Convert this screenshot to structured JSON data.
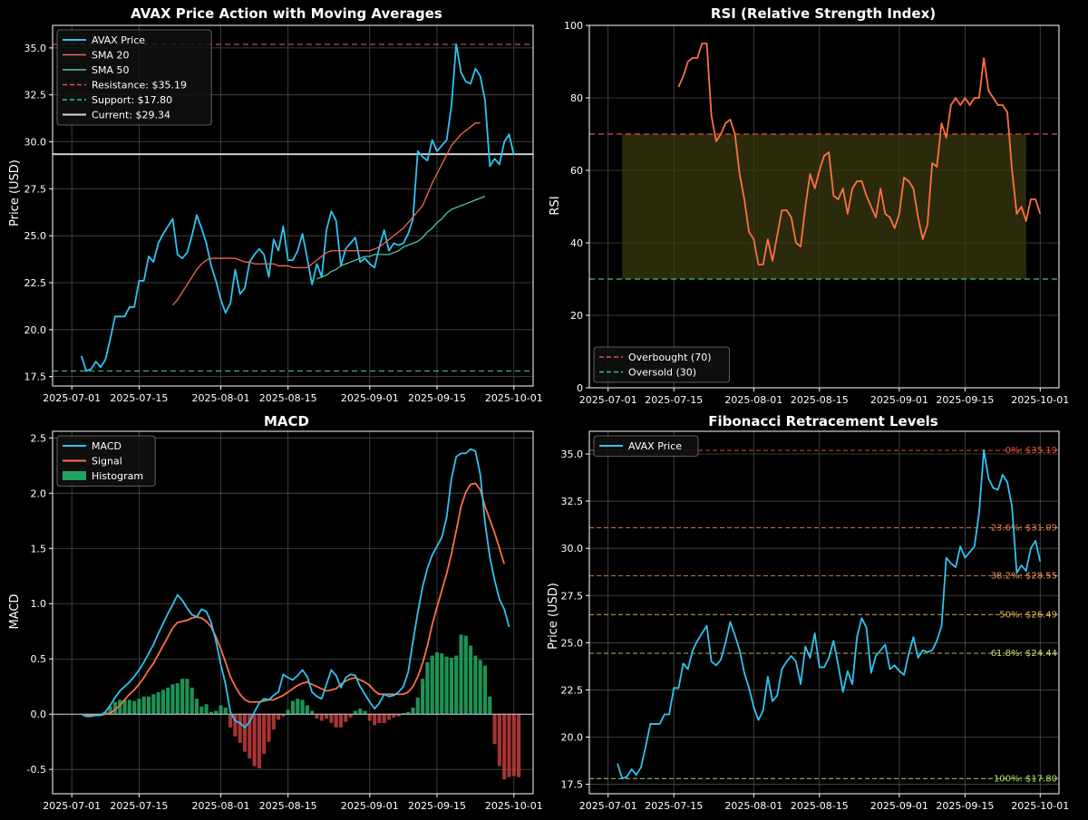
{
  "dates": {
    "start": "2025-07-03",
    "end": "2025-09-29"
  },
  "xticks": [
    "2025-07-01",
    "2025-07-15",
    "2025-08-01",
    "2025-08-15",
    "2025-09-01",
    "2025-09-15",
    "2025-10-01"
  ],
  "colors": {
    "background": "#000000",
    "axes_edge": "#ffffff",
    "grid": "#4d4d4d",
    "price": "#2ec4f1",
    "sma20": "#f06a4a",
    "sma50": "#4fc7a6",
    "resistance": "#d9534f",
    "support": "#2ecc71",
    "current": "#d9d9d9",
    "rsi": "#ff7043",
    "overbought": "#d9534f",
    "oversold": "#2ecc71",
    "rsi_band": "#3a3a10",
    "macd": "#2ec4f1",
    "signal": "#ff7043",
    "hist_pos": "#1fa45e",
    "hist_neg": "#b93a3a",
    "fib0": "#e74c3c",
    "fib236": "#e67e53",
    "fib382": "#f0975a",
    "fib50": "#e6b450",
    "fib618": "#d4d86a",
    "fib100": "#a8e06a"
  },
  "chart_data": [
    {
      "id": "price",
      "type": "line",
      "title": "AVAX Price Action with Moving Averages",
      "xlabel": "",
      "ylabel": "Price (USD)",
      "ylim": [
        17.0,
        36.2
      ],
      "yticks": [
        "17.5",
        "20.0",
        "22.5",
        "25.0",
        "27.5",
        "30.0",
        "32.5",
        "35.0"
      ],
      "series": [
        {
          "name": "AVAX Price",
          "start": "2025-07-03",
          "values": [
            18.6,
            17.8,
            17.9,
            18.3,
            18.0,
            18.4,
            19.5,
            20.7,
            20.7,
            20.7,
            21.2,
            21.2,
            22.6,
            22.6,
            23.9,
            23.6,
            24.6,
            25.1,
            25.5,
            25.9,
            24.0,
            23.8,
            24.1,
            25.0,
            26.1,
            25.4,
            24.6,
            23.4,
            22.6,
            21.6,
            20.9,
            21.4,
            23.2,
            21.9,
            22.2,
            23.6,
            24.0,
            24.3,
            24.0,
            22.8,
            24.8,
            24.2,
            25.5,
            23.7,
            23.7,
            24.2,
            25.1,
            23.8,
            22.4,
            23.5,
            22.8,
            25.3,
            26.3,
            25.8,
            23.4,
            24.3,
            24.6,
            24.9,
            23.6,
            23.8,
            23.5,
            23.3,
            24.4,
            25.3,
            24.2,
            24.6,
            24.5,
            24.6,
            25.1,
            25.9,
            29.5,
            29.2,
            29.0,
            30.1,
            29.5,
            29.8,
            30.1,
            31.9,
            35.2,
            33.7,
            33.2,
            33.1,
            33.9,
            33.5,
            32.2,
            28.7,
            29.1,
            28.8,
            30.0,
            30.4,
            29.3
          ]
        },
        {
          "name": "SMA 20",
          "start": "2025-07-22",
          "values": [
            21.3,
            21.6,
            22.0,
            22.4,
            22.8,
            23.2,
            23.5,
            23.7,
            23.8,
            23.8,
            23.8,
            23.8,
            23.8,
            23.8,
            23.7,
            23.6,
            23.6,
            23.5,
            23.5,
            23.5,
            23.5,
            23.5,
            23.4,
            23.4,
            23.4,
            23.3,
            23.3,
            23.3,
            23.3,
            23.5,
            23.7,
            23.9,
            24.1,
            24.2,
            24.2,
            24.2,
            24.2,
            24.2,
            24.2,
            24.2,
            24.2,
            24.2,
            24.3,
            24.4,
            24.6,
            24.8,
            25.0,
            25.2,
            25.4,
            25.7,
            26.0,
            26.3,
            26.6,
            27.2,
            27.8,
            28.3,
            28.8,
            29.3,
            29.8,
            30.1,
            30.4,
            30.6,
            30.8,
            31.0,
            31.0
          ]
        },
        {
          "name": "SMA 50",
          "start": "2025-08-21",
          "values": [
            22.7,
            22.8,
            22.9,
            23.1,
            23.2,
            23.4,
            23.5,
            23.6,
            23.7,
            23.8,
            23.9,
            23.9,
            24.0,
            24.0,
            24.0,
            24.0,
            24.1,
            24.2,
            24.4,
            24.5,
            24.6,
            24.7,
            24.9,
            25.2,
            25.4,
            25.7,
            25.9,
            26.2,
            26.4,
            26.5,
            26.6,
            26.7,
            26.8,
            26.9,
            27.0,
            27.1
          ]
        }
      ],
      "hlines": [
        {
          "name": "Resistance: $35.19",
          "value": 35.19,
          "style": "dashed",
          "color_key": "resistance"
        },
        {
          "name": "Support: $17.80",
          "value": 17.8,
          "style": "dashed",
          "color_key": "support"
        },
        {
          "name": "Current: $29.34",
          "value": 29.34,
          "style": "solid",
          "color_key": "current"
        }
      ],
      "legend": "top-left"
    },
    {
      "id": "rsi",
      "type": "line",
      "title": "RSI (Relative Strength Index)",
      "xlabel": "",
      "ylabel": "RSI",
      "ylim": [
        0,
        100
      ],
      "yticks": [
        "0",
        "20",
        "40",
        "60",
        "80",
        "100"
      ],
      "series": [
        {
          "name": "RSI",
          "start": "2025-07-16",
          "values": [
            83,
            86,
            90,
            91,
            91,
            95,
            95,
            75,
            68,
            70,
            73,
            74,
            70,
            59,
            52,
            43,
            41,
            34,
            34,
            41,
            35,
            42,
            49,
            49,
            47,
            40,
            39,
            50,
            59,
            55,
            60,
            64,
            65,
            53,
            52,
            55,
            48,
            55,
            57,
            57,
            53,
            50,
            47,
            55,
            48,
            47,
            44,
            48,
            58,
            57,
            55,
            47,
            41,
            45,
            62,
            61,
            73,
            69,
            78,
            80,
            78,
            80,
            78,
            80,
            80,
            91,
            82,
            80,
            78,
            78,
            76,
            60,
            48,
            50,
            46,
            52,
            52,
            48
          ]
        }
      ],
      "hlines": [
        {
          "name": "Overbought (70)",
          "value": 70,
          "style": "dashed",
          "color_key": "overbought"
        },
        {
          "name": "Oversold (30)",
          "value": 30,
          "style": "dashed",
          "color_key": "oversold"
        }
      ],
      "band": {
        "from_date": "2025-07-04",
        "to_date": "2025-09-28",
        "ymin": 30,
        "ymax": 70
      },
      "legend": "bottom-left"
    },
    {
      "id": "macd",
      "type": "line",
      "title": "MACD",
      "xlabel": "",
      "ylabel": "MACD",
      "ylim": [
        -0.72,
        2.56
      ],
      "yticks": [
        "-0.5",
        "0.0",
        "0.5",
        "1.0",
        "1.5",
        "2.0",
        "2.5"
      ],
      "series": [
        {
          "name": "MACD",
          "start": "2025-07-03",
          "values": [
            0,
            -0.02,
            -0.02,
            -0.01,
            -0.01,
            0.02,
            0.08,
            0.15,
            0.21,
            0.25,
            0.29,
            0.34,
            0.4,
            0.47,
            0.55,
            0.63,
            0.73,
            0.82,
            0.91,
            0.99,
            1.08,
            1.03,
            0.96,
            0.9,
            0.88,
            0.95,
            0.93,
            0.83,
            0.66,
            0.45,
            0.27,
            0.02,
            -0.06,
            -0.08,
            -0.12,
            -0.07,
            0.02,
            0.1,
            0.14,
            0.13,
            0.17,
            0.2,
            0.36,
            0.33,
            0.31,
            0.35,
            0.4,
            0.34,
            0.2,
            0.16,
            0.14,
            0.27,
            0.4,
            0.35,
            0.24,
            0.33,
            0.36,
            0.35,
            0.25,
            0.18,
            0.11,
            0.05,
            0.1,
            0.18,
            0.16,
            0.17,
            0.2,
            0.25,
            0.38,
            0.66,
            0.92,
            1.15,
            1.32,
            1.44,
            1.52,
            1.6,
            1.78,
            2.13,
            2.33,
            2.36,
            2.36,
            2.4,
            2.38,
            2.17,
            1.73,
            1.42,
            1.21,
            1.04,
            0.95,
            0.79
          ]
        },
        {
          "name": "Signal",
          "start": "2025-07-03",
          "values": [
            0,
            -0.01,
            -0.01,
            -0.01,
            -0.01,
            0,
            0.01,
            0.04,
            0.08,
            0.13,
            0.18,
            0.22,
            0.27,
            0.33,
            0.4,
            0.46,
            0.54,
            0.62,
            0.7,
            0.78,
            0.83,
            0.84,
            0.85,
            0.87,
            0.88,
            0.87,
            0.84,
            0.79,
            0.7,
            0.59,
            0.47,
            0.34,
            0.25,
            0.18,
            0.13,
            0.11,
            0.11,
            0.11,
            0.12,
            0.13,
            0.13,
            0.15,
            0.17,
            0.2,
            0.23,
            0.26,
            0.28,
            0.29,
            0.27,
            0.25,
            0.23,
            0.21,
            0.22,
            0.23,
            0.27,
            0.3,
            0.32,
            0.33,
            0.31,
            0.29,
            0.26,
            0.21,
            0.18,
            0.18,
            0.18,
            0.18,
            0.18,
            0.18,
            0.2,
            0.25,
            0.34,
            0.46,
            0.62,
            0.81,
            0.97,
            1.12,
            1.27,
            1.45,
            1.66,
            1.88,
            2.01,
            2.08,
            2.09,
            2.03,
            1.88,
            1.76,
            1.64,
            1.5,
            1.36
          ]
        },
        {
          "name": "Histogram",
          "start": "2025-07-03",
          "values": [
            0,
            -0.01,
            -0.01,
            0,
            0,
            0.02,
            0.07,
            0.11,
            0.13,
            0.13,
            0.13,
            0.12,
            0.14,
            0.16,
            0.16,
            0.18,
            0.2,
            0.22,
            0.24,
            0.27,
            0.28,
            0.32,
            0.32,
            0.24,
            0.14,
            0.07,
            0.09,
            0.02,
            0.03,
            0.08,
            0.06,
            -0.12,
            -0.2,
            -0.26,
            -0.34,
            -0.4,
            -0.47,
            -0.49,
            -0.36,
            -0.25,
            -0.14,
            -0.05,
            -0.02,
            0.04,
            0.12,
            0.14,
            0.13,
            0.08,
            0.03,
            -0.04,
            -0.06,
            -0.04,
            -0.08,
            -0.12,
            -0.12,
            -0.07,
            -0.03,
            0.03,
            0.05,
            0.03,
            -0.06,
            -0.1,
            -0.08,
            -0.08,
            -0.05,
            -0.03,
            -0.02,
            0.01,
            0.02,
            0.06,
            0.15,
            0.32,
            0.47,
            0.53,
            0.56,
            0.55,
            0.52,
            0.51,
            0.53,
            0.72,
            0.71,
            0.62,
            0.53,
            0.49,
            0.44,
            0.16,
            -0.27,
            -0.47,
            -0.59,
            -0.57,
            -0.56,
            -0.57
          ]
        }
      ],
      "zero_line": true,
      "legend": "top-left"
    },
    {
      "id": "fib",
      "type": "line",
      "title": "Fibonacci Retracement Levels",
      "xlabel": "",
      "ylabel": "Price (USD)",
      "ylim": [
        17.0,
        36.2
      ],
      "yticks": [
        "17.5",
        "20.0",
        "22.5",
        "25.0",
        "27.5",
        "30.0",
        "32.5",
        "35.0"
      ],
      "series": [
        {
          "name": "AVAX Price",
          "start": "2025-07-03",
          "values": [
            18.6,
            17.8,
            17.9,
            18.3,
            18.0,
            18.4,
            19.5,
            20.7,
            20.7,
            20.7,
            21.2,
            21.2,
            22.6,
            22.6,
            23.9,
            23.6,
            24.6,
            25.1,
            25.5,
            25.9,
            24.0,
            23.8,
            24.1,
            25.0,
            26.1,
            25.4,
            24.6,
            23.4,
            22.6,
            21.6,
            20.9,
            21.4,
            23.2,
            21.9,
            22.2,
            23.6,
            24.0,
            24.3,
            24.0,
            22.8,
            24.8,
            24.2,
            25.5,
            23.7,
            23.7,
            24.2,
            25.1,
            23.8,
            22.4,
            23.5,
            22.8,
            25.3,
            26.3,
            25.8,
            23.4,
            24.3,
            24.6,
            24.9,
            23.6,
            23.8,
            23.5,
            23.3,
            24.4,
            25.3,
            24.2,
            24.6,
            24.5,
            24.6,
            25.1,
            25.9,
            29.5,
            29.2,
            29.0,
            30.1,
            29.5,
            29.8,
            30.1,
            31.9,
            35.2,
            33.7,
            33.2,
            33.1,
            33.9,
            33.5,
            32.2,
            28.7,
            29.1,
            28.8,
            30.0,
            30.4,
            29.3
          ]
        }
      ],
      "levels": [
        {
          "label": "0%: $35.19",
          "value": 35.19,
          "color_key": "fib0"
        },
        {
          "label": "23.6%: $31.09",
          "value": 31.09,
          "color_key": "fib236"
        },
        {
          "label": "38.2%: $28.55",
          "value": 28.55,
          "color_key": "fib382"
        },
        {
          "label": "50%: $26.49",
          "value": 26.49,
          "color_key": "fib50"
        },
        {
          "label": "61.8%: $24.44",
          "value": 24.44,
          "color_key": "fib618"
        },
        {
          "label": "100%: $17.80",
          "value": 17.8,
          "color_key": "fib100"
        }
      ],
      "legend": "top-left"
    }
  ]
}
